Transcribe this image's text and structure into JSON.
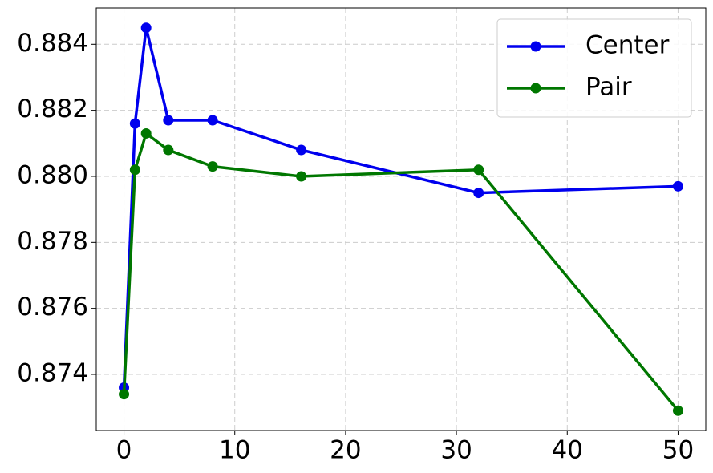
{
  "chart_data": {
    "type": "line",
    "x": [
      0,
      1,
      2,
      4,
      8,
      16,
      32,
      50
    ],
    "series": [
      {
        "name": "Center",
        "color": "#0000ee",
        "values": [
          0.8736,
          0.8816,
          0.8845,
          0.8817,
          0.8817,
          0.8808,
          0.8795,
          0.8797
        ]
      },
      {
        "name": "Pair",
        "color": "#007700",
        "values": [
          0.8734,
          0.8802,
          0.8813,
          0.8808,
          0.8803,
          0.88,
          0.8802,
          0.8729
        ]
      }
    ],
    "xlim": [
      -2.5,
      52.5
    ],
    "xticks": [
      0,
      10,
      20,
      30,
      40,
      50
    ],
    "ylim": [
      0.8723,
      0.8851
    ],
    "yticks": [
      0.874,
      0.876,
      0.878,
      {
        "value": 0.88,
        "label": "0.880"
      },
      0.882,
      0.884
    ],
    "grid": true,
    "legend": "upper right"
  }
}
